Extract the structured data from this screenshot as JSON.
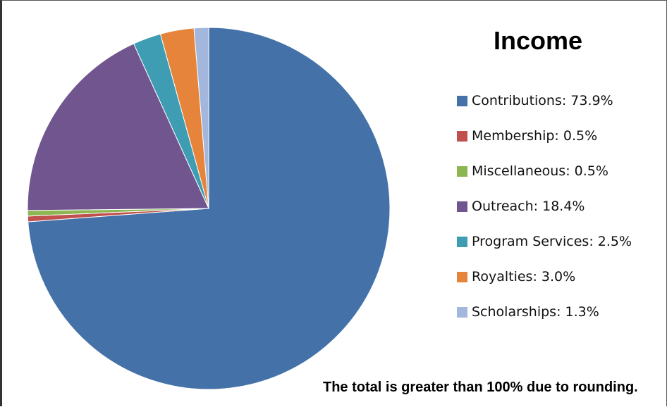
{
  "chart_data": {
    "type": "pie",
    "title": "Income",
    "slices": [
      {
        "label": "Contributions",
        "value": 73.9,
        "color": "#4472a8"
      },
      {
        "label": "Membership",
        "value": 0.5,
        "color": "#c0504d"
      },
      {
        "label": "Miscellaneous",
        "value": 0.5,
        "color": "#8db653"
      },
      {
        "label": "Outreach",
        "value": 18.4,
        "color": "#71558f"
      },
      {
        "label": "Program Services",
        "value": 2.5,
        "color": "#3e9db3"
      },
      {
        "label": "Royalties",
        "value": 3.0,
        "color": "#e5843a"
      },
      {
        "label": "Scholarships",
        "value": 1.3,
        "color": "#a3b7dc"
      }
    ],
    "legend_labels": [
      "Contributions: 73.9%",
      "Membership: 0.5%",
      "Miscellaneous: 0.5%",
      "Outreach: 18.4%",
      "Program Services: 2.5%",
      "Royalties: 3.0%",
      "Scholarships: 1.3%"
    ],
    "legend_position": "right",
    "start_angle": "top, clockwise",
    "footnote": "The total is greater than 100% due to rounding."
  }
}
